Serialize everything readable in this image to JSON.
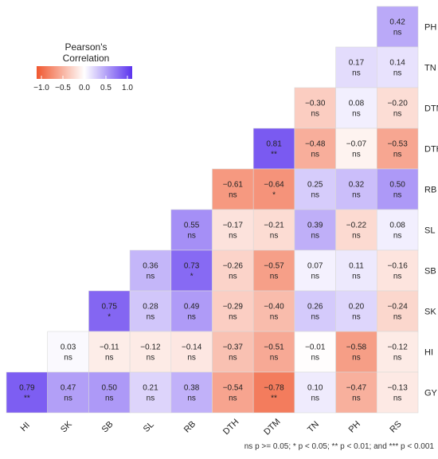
{
  "chart_data": {
    "type": "heatmap",
    "legend": {
      "title_line1": "Pearson's",
      "title_line2": "Correlation",
      "ticks": [
        "−1.0",
        "−0.5",
        "0.0",
        "0.5",
        "1.0"
      ],
      "tick_values": [
        -1.0,
        -0.5,
        0.0,
        0.5,
        1.0
      ],
      "placement": "top-left"
    },
    "colors": {
      "negative": "#f0572f",
      "neutral": "#ffffff",
      "positive": "#5b33ee"
    },
    "x_labels": [
      "HI",
      "SK",
      "SB",
      "SL",
      "RB",
      "DTH",
      "DTM",
      "TN",
      "PH",
      "RS"
    ],
    "y_labels": [
      "PH",
      "TN",
      "DTM",
      "DTH",
      "RB",
      "SL",
      "SB",
      "SK",
      "HI",
      "GY"
    ],
    "cells": [
      {
        "row": "PH",
        "col": "RS",
        "value": 0.42,
        "label": "0.42",
        "sig": "ns"
      },
      {
        "row": "TN",
        "col": "PH",
        "value": 0.17,
        "label": "0.17",
        "sig": "ns"
      },
      {
        "row": "TN",
        "col": "RS",
        "value": 0.14,
        "label": "0.14",
        "sig": "ns"
      },
      {
        "row": "DTM",
        "col": "TN",
        "value": -0.3,
        "label": "−0.30",
        "sig": "ns"
      },
      {
        "row": "DTM",
        "col": "PH",
        "value": 0.08,
        "label": "0.08",
        "sig": "ns"
      },
      {
        "row": "DTM",
        "col": "RS",
        "value": -0.2,
        "label": "−0.20",
        "sig": "ns"
      },
      {
        "row": "DTH",
        "col": "DTM",
        "value": 0.81,
        "label": "0.81",
        "sig": "**"
      },
      {
        "row": "DTH",
        "col": "TN",
        "value": -0.48,
        "label": "−0.48",
        "sig": "ns"
      },
      {
        "row": "DTH",
        "col": "PH",
        "value": -0.07,
        "label": "−0.07",
        "sig": "ns"
      },
      {
        "row": "DTH",
        "col": "RS",
        "value": -0.53,
        "label": "−0.53",
        "sig": "ns"
      },
      {
        "row": "RB",
        "col": "DTH",
        "value": -0.61,
        "label": "−0.61",
        "sig": "ns"
      },
      {
        "row": "RB",
        "col": "DTM",
        "value": -0.64,
        "label": "−0.64",
        "sig": "*"
      },
      {
        "row": "RB",
        "col": "TN",
        "value": 0.25,
        "label": "0.25",
        "sig": "ns"
      },
      {
        "row": "RB",
        "col": "PH",
        "value": 0.32,
        "label": "0.32",
        "sig": "ns"
      },
      {
        "row": "RB",
        "col": "RS",
        "value": 0.5,
        "label": "0.50",
        "sig": "ns"
      },
      {
        "row": "SL",
        "col": "RB",
        "value": 0.55,
        "label": "0.55",
        "sig": "ns"
      },
      {
        "row": "SL",
        "col": "DTH",
        "value": -0.17,
        "label": "−0.17",
        "sig": "ns"
      },
      {
        "row": "SL",
        "col": "DTM",
        "value": -0.21,
        "label": "−0.21",
        "sig": "ns"
      },
      {
        "row": "SL",
        "col": "TN",
        "value": 0.39,
        "label": "0.39",
        "sig": "ns"
      },
      {
        "row": "SL",
        "col": "PH",
        "value": -0.22,
        "label": "−0.22",
        "sig": "ns"
      },
      {
        "row": "SL",
        "col": "RS",
        "value": 0.08,
        "label": "0.08",
        "sig": "ns"
      },
      {
        "row": "SB",
        "col": "SL",
        "value": 0.36,
        "label": "0.36",
        "sig": "ns"
      },
      {
        "row": "SB",
        "col": "RB",
        "value": 0.73,
        "label": "0.73",
        "sig": "*"
      },
      {
        "row": "SB",
        "col": "DTH",
        "value": -0.26,
        "label": "−0.26",
        "sig": "ns"
      },
      {
        "row": "SB",
        "col": "DTM",
        "value": -0.57,
        "label": "−0.57",
        "sig": "ns"
      },
      {
        "row": "SB",
        "col": "TN",
        "value": 0.07,
        "label": "0.07",
        "sig": "ns"
      },
      {
        "row": "SB",
        "col": "PH",
        "value": 0.11,
        "label": "0.11",
        "sig": "ns"
      },
      {
        "row": "SB",
        "col": "RS",
        "value": -0.16,
        "label": "−0.16",
        "sig": "ns"
      },
      {
        "row": "SK",
        "col": "SB",
        "value": 0.75,
        "label": "0.75",
        "sig": "*"
      },
      {
        "row": "SK",
        "col": "SL",
        "value": 0.28,
        "label": "0.28",
        "sig": "ns"
      },
      {
        "row": "SK",
        "col": "RB",
        "value": 0.49,
        "label": "0.49",
        "sig": "ns"
      },
      {
        "row": "SK",
        "col": "DTH",
        "value": -0.29,
        "label": "−0.29",
        "sig": "ns"
      },
      {
        "row": "SK",
        "col": "DTM",
        "value": -0.4,
        "label": "−0.40",
        "sig": "ns"
      },
      {
        "row": "SK",
        "col": "TN",
        "value": 0.26,
        "label": "0.26",
        "sig": "ns"
      },
      {
        "row": "SK",
        "col": "PH",
        "value": 0.2,
        "label": "0.20",
        "sig": "ns"
      },
      {
        "row": "SK",
        "col": "RS",
        "value": -0.24,
        "label": "−0.24",
        "sig": "ns"
      },
      {
        "row": "HI",
        "col": "SK",
        "value": 0.03,
        "label": "0.03",
        "sig": "ns"
      },
      {
        "row": "HI",
        "col": "SB",
        "value": -0.11,
        "label": "−0.11",
        "sig": "ns"
      },
      {
        "row": "HI",
        "col": "SL",
        "value": -0.12,
        "label": "−0.12",
        "sig": "ns"
      },
      {
        "row": "HI",
        "col": "RB",
        "value": -0.14,
        "label": "−0.14",
        "sig": "ns"
      },
      {
        "row": "HI",
        "col": "DTH",
        "value": -0.37,
        "label": "−0.37",
        "sig": "ns"
      },
      {
        "row": "HI",
        "col": "DTM",
        "value": -0.51,
        "label": "−0.51",
        "sig": "ns"
      },
      {
        "row": "HI",
        "col": "TN",
        "value": -0.01,
        "label": "−0.01",
        "sig": "ns"
      },
      {
        "row": "HI",
        "col": "PH",
        "value": -0.58,
        "label": "−0.58",
        "sig": "ns"
      },
      {
        "row": "HI",
        "col": "RS",
        "value": -0.12,
        "label": "−0.12",
        "sig": "ns"
      },
      {
        "row": "GY",
        "col": "HI",
        "value": 0.79,
        "label": "0.79",
        "sig": "**"
      },
      {
        "row": "GY",
        "col": "SK",
        "value": 0.47,
        "label": "0.47",
        "sig": "ns"
      },
      {
        "row": "GY",
        "col": "SB",
        "value": 0.5,
        "label": "0.50",
        "sig": "ns"
      },
      {
        "row": "GY",
        "col": "SL",
        "value": 0.21,
        "label": "0.21",
        "sig": "ns"
      },
      {
        "row": "GY",
        "col": "RB",
        "value": 0.38,
        "label": "0.38",
        "sig": "ns"
      },
      {
        "row": "GY",
        "col": "DTH",
        "value": -0.54,
        "label": "−0.54",
        "sig": "ns"
      },
      {
        "row": "GY",
        "col": "DTM",
        "value": -0.78,
        "label": "−0.78",
        "sig": "**"
      },
      {
        "row": "GY",
        "col": "TN",
        "value": 0.1,
        "label": "0.10",
        "sig": "ns"
      },
      {
        "row": "GY",
        "col": "PH",
        "value": -0.47,
        "label": "−0.47",
        "sig": "ns"
      },
      {
        "row": "GY",
        "col": "RS",
        "value": -0.13,
        "label": "−0.13",
        "sig": "ns"
      }
    ],
    "footnote": "ns p >= 0.05; * p < 0.05; ** p < 0.01; and *** p < 0.001"
  }
}
